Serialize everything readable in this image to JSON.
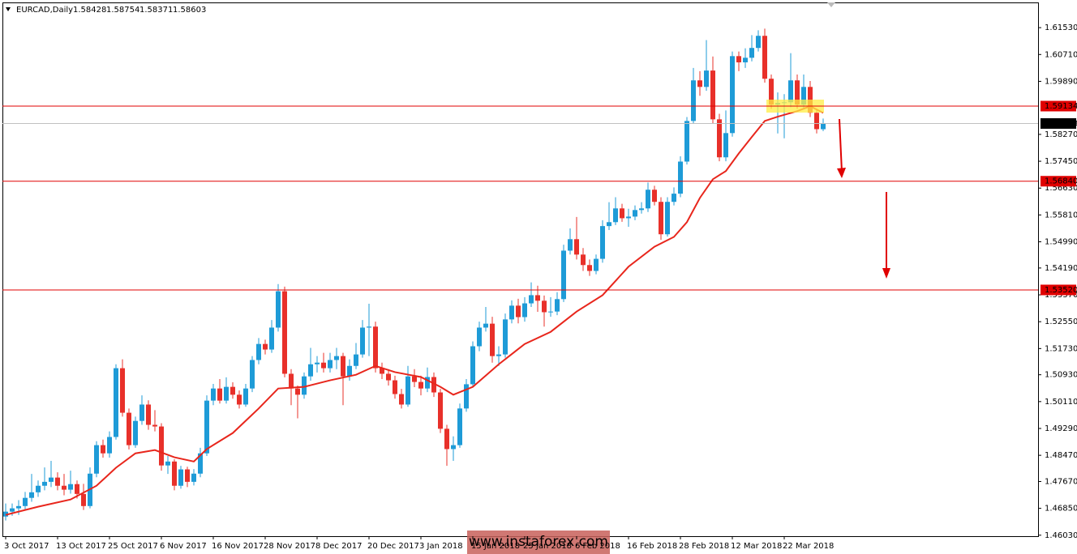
{
  "chart_data": {
    "type": "candlestick",
    "title": "EURCAD,Daily",
    "up_color": "#1e9bd7",
    "down_color": "#e8302a",
    "ylim": [
      1.46,
      1.623
    ],
    "yticks": [
      {
        "value": 1.6153,
        "label": "1.61530"
      },
      {
        "value": 1.6071,
        "label": "1.60710"
      },
      {
        "value": 1.5989,
        "label": "1.59890"
      },
      {
        "value": 1.5827,
        "label": "1.58270"
      },
      {
        "value": 1.5745,
        "label": "1.57450"
      },
      {
        "value": 1.5663,
        "label": "1.56630"
      },
      {
        "value": 1.5581,
        "label": "1.55810"
      },
      {
        "value": 1.5499,
        "label": "1.54990"
      },
      {
        "value": 1.5419,
        "label": "1.54190"
      },
      {
        "value": 1.5337,
        "label": "1.53370"
      },
      {
        "value": 1.5255,
        "label": "1.52550"
      },
      {
        "value": 1.5173,
        "label": "1.51730"
      },
      {
        "value": 1.5093,
        "label": "1.50930"
      },
      {
        "value": 1.5011,
        "label": "1.50110"
      },
      {
        "value": 1.4929,
        "label": "1.49290"
      },
      {
        "value": 1.4847,
        "label": "1.48470"
      },
      {
        "value": 1.4767,
        "label": "1.47670"
      },
      {
        "value": 1.4685,
        "label": "1.46850"
      },
      {
        "value": 1.4603,
        "label": "1.46030"
      }
    ],
    "xticks": [
      {
        "value": 0,
        "label": "3 Oct 2017"
      },
      {
        "value": 8,
        "label": "13 Oct 2017"
      },
      {
        "value": 16,
        "label": "25 Oct 2017"
      },
      {
        "value": 24,
        "label": "6 Nov 2017"
      },
      {
        "value": 32,
        "label": "16 Nov 2017"
      },
      {
        "value": 40,
        "label": "28 Nov 2017"
      },
      {
        "value": 48,
        "label": "8 Dec 2017"
      },
      {
        "value": 56,
        "label": "20 Dec 2017"
      },
      {
        "value": 64,
        "label": "3 Jan 2018"
      },
      {
        "value": 72,
        "label": "15 Jan 2018"
      },
      {
        "value": 80,
        "label": "25 Jan 2018"
      },
      {
        "value": 88,
        "label": "6 Feb 2018"
      },
      {
        "value": 96,
        "label": "16 Feb 2018"
      },
      {
        "value": 104,
        "label": "28 Feb 2018"
      },
      {
        "value": 112,
        "label": "12 Mar 2018"
      },
      {
        "value": 120,
        "label": "22 Mar 2018"
      }
    ],
    "levels": [
      {
        "value": 1.59134,
        "label": "1.59134",
        "color": "#e00000"
      },
      {
        "value": 1.5684,
        "label": "1.56840",
        "color": "#e00000"
      },
      {
        "value": 1.5352,
        "label": "1.53520",
        "color": "#e00000"
      }
    ],
    "ma": {
      "color": "#e8261c",
      "x": [
        0,
        5,
        10,
        14,
        17,
        20,
        23,
        26,
        29,
        31,
        35,
        39,
        42,
        46,
        50,
        54,
        57,
        60,
        64,
        67,
        69,
        72,
        76,
        80,
        84,
        88,
        92,
        96,
        100,
        103,
        105,
        107,
        109,
        111,
        113,
        115,
        117,
        119,
        122,
        124,
        126
      ],
      "values": [
        1.4665,
        1.469,
        1.4712,
        1.4754,
        1.4809,
        1.4853,
        1.4863,
        1.4841,
        1.4828,
        1.4866,
        1.4915,
        1.499,
        1.5051,
        1.5056,
        1.5076,
        1.5093,
        1.512,
        1.5101,
        1.5086,
        1.5056,
        1.5032,
        1.5056,
        1.5125,
        1.5187,
        1.5224,
        1.5286,
        1.5336,
        1.5423,
        1.5484,
        1.5514,
        1.5559,
        1.5633,
        1.569,
        1.5715,
        1.5769,
        1.5819,
        1.5868,
        1.5881,
        1.5898,
        1.5913,
        1.5893
      ]
    },
    "watermark": "www.instaforex.com",
    "candles": [
      [
        1.466,
        1.47,
        1.4648,
        1.4675
      ],
      [
        1.4675,
        1.47,
        1.4662,
        1.4685
      ],
      [
        1.4685,
        1.471,
        1.4665,
        1.4692
      ],
      [
        1.4692,
        1.4735,
        1.468,
        1.4717
      ],
      [
        1.4717,
        1.479,
        1.4705,
        1.4734
      ],
      [
        1.4734,
        1.477,
        1.472,
        1.4754
      ],
      [
        1.4754,
        1.481,
        1.474,
        1.4766
      ],
      [
        1.4766,
        1.483,
        1.475,
        1.4779
      ],
      [
        1.4779,
        1.4795,
        1.474,
        1.4754
      ],
      [
        1.4754,
        1.479,
        1.4725,
        1.4742
      ],
      [
        1.4742,
        1.48,
        1.473,
        1.4759
      ],
      [
        1.4759,
        1.477,
        1.4715,
        1.4729
      ],
      [
        1.4729,
        1.476,
        1.468,
        1.4692
      ],
      [
        1.4692,
        1.481,
        1.4685,
        1.4791
      ],
      [
        1.4791,
        1.489,
        1.478,
        1.4878
      ],
      [
        1.4878,
        1.4895,
        1.484,
        1.4853
      ],
      [
        1.4853,
        1.492,
        1.484,
        1.4903
      ],
      [
        1.4903,
        1.5125,
        1.4895,
        1.5113
      ],
      [
        1.5113,
        1.514,
        1.4965,
        1.4977
      ],
      [
        1.4977,
        1.499,
        1.4865,
        1.4878
      ],
      [
        1.4878,
        1.4965,
        1.487,
        1.4952
      ],
      [
        1.4952,
        1.503,
        1.494,
        1.5002
      ],
      [
        1.5002,
        1.5015,
        1.4925,
        1.494
      ],
      [
        1.494,
        1.4985,
        1.492,
        1.4935
      ],
      [
        1.4935,
        1.4945,
        1.48,
        1.4816
      ],
      [
        1.4816,
        1.4845,
        1.479,
        1.4828
      ],
      [
        1.4828,
        1.4835,
        1.474,
        1.4754
      ],
      [
        1.4754,
        1.4815,
        1.4745,
        1.4804
      ],
      [
        1.4804,
        1.4812,
        1.475,
        1.4766
      ],
      [
        1.4766,
        1.4805,
        1.4755,
        1.4791
      ],
      [
        1.4791,
        1.487,
        1.478,
        1.4853
      ],
      [
        1.4853,
        1.503,
        1.4845,
        1.5014
      ],
      [
        1.5014,
        1.5065,
        1.5,
        1.5051
      ],
      [
        1.5051,
        1.508,
        1.5005,
        1.5014
      ],
      [
        1.5014,
        1.5085,
        1.5005,
        1.5056
      ],
      [
        1.5056,
        1.507,
        1.502,
        1.5032
      ],
      [
        1.5032,
        1.5045,
        1.499,
        1.5002
      ],
      [
        1.5002,
        1.5065,
        1.4995,
        1.5051
      ],
      [
        1.5051,
        1.515,
        1.504,
        1.5138
      ],
      [
        1.5138,
        1.5205,
        1.5125,
        1.5187
      ],
      [
        1.5187,
        1.52,
        1.5155,
        1.517
      ],
      [
        1.517,
        1.526,
        1.516,
        1.5237
      ],
      [
        1.5237,
        1.537,
        1.5225,
        1.5348
      ],
      [
        1.5348,
        1.5362,
        1.5085,
        1.5096
      ],
      [
        1.5096,
        1.511,
        1.5,
        1.5051
      ],
      [
        1.5051,
        1.506,
        1.496,
        1.5032
      ],
      [
        1.5032,
        1.51,
        1.502,
        1.5088
      ],
      [
        1.5088,
        1.5175,
        1.5075,
        1.5125
      ],
      [
        1.5125,
        1.515,
        1.51,
        1.513
      ],
      [
        1.513,
        1.516,
        1.51,
        1.5113
      ],
      [
        1.5113,
        1.516,
        1.51,
        1.5138
      ],
      [
        1.5138,
        1.5175,
        1.511,
        1.515
      ],
      [
        1.515,
        1.516,
        1.5,
        1.5088
      ],
      [
        1.5088,
        1.514,
        1.5075,
        1.512
      ],
      [
        1.512,
        1.519,
        1.511,
        1.5155
      ],
      [
        1.5155,
        1.526,
        1.5145,
        1.5237
      ],
      [
        1.5237,
        1.531,
        1.515,
        1.524
      ],
      [
        1.524,
        1.5255,
        1.51,
        1.5113
      ],
      [
        1.5113,
        1.513,
        1.508,
        1.5096
      ],
      [
        1.5096,
        1.511,
        1.506,
        1.5076
      ],
      [
        1.5076,
        1.509,
        1.502,
        1.5034
      ],
      [
        1.5034,
        1.505,
        1.499,
        1.5002
      ],
      [
        1.5002,
        1.512,
        1.4995,
        1.5088
      ],
      [
        1.5088,
        1.511,
        1.5055,
        1.5071
      ],
      [
        1.5071,
        1.509,
        1.503,
        1.5051
      ],
      [
        1.5051,
        1.5115,
        1.504,
        1.5086
      ],
      [
        1.5086,
        1.51,
        1.5025,
        1.5039
      ],
      [
        1.5039,
        1.505,
        1.4915,
        1.4928
      ],
      [
        1.4928,
        1.494,
        1.4815,
        1.4866
      ],
      [
        1.4866,
        1.4905,
        1.483,
        1.4878
      ],
      [
        1.4878,
        1.5005,
        1.487,
        1.499
      ],
      [
        1.499,
        1.508,
        1.498,
        1.5064
      ],
      [
        1.5064,
        1.5195,
        1.5055,
        1.518
      ],
      [
        1.518,
        1.5255,
        1.5165,
        1.5237
      ],
      [
        1.5237,
        1.53,
        1.5225,
        1.5249
      ],
      [
        1.5249,
        1.527,
        1.513,
        1.515
      ],
      [
        1.515,
        1.518,
        1.512,
        1.5155
      ],
      [
        1.5155,
        1.528,
        1.5145,
        1.5262
      ],
      [
        1.5262,
        1.532,
        1.525,
        1.5304
      ],
      [
        1.5304,
        1.5325,
        1.525,
        1.5269
      ],
      [
        1.5269,
        1.533,
        1.5255,
        1.5311
      ],
      [
        1.5311,
        1.5375,
        1.53,
        1.5336
      ],
      [
        1.5336,
        1.5365,
        1.5285,
        1.5319
      ],
      [
        1.5319,
        1.5335,
        1.524,
        1.5284
      ],
      [
        1.5284,
        1.533,
        1.527,
        1.5286
      ],
      [
        1.5286,
        1.5345,
        1.5275,
        1.5324
      ],
      [
        1.5324,
        1.549,
        1.5315,
        1.5472
      ],
      [
        1.5472,
        1.554,
        1.546,
        1.5507
      ],
      [
        1.5507,
        1.5575,
        1.5445,
        1.546
      ],
      [
        1.546,
        1.548,
        1.541,
        1.5428
      ],
      [
        1.5428,
        1.5445,
        1.5395,
        1.541
      ],
      [
        1.541,
        1.546,
        1.54,
        1.5447
      ],
      [
        1.5447,
        1.5565,
        1.5435,
        1.5547
      ],
      [
        1.5547,
        1.562,
        1.5535,
        1.5559
      ],
      [
        1.5559,
        1.5635,
        1.555,
        1.5601
      ],
      [
        1.5601,
        1.5615,
        1.556,
        1.5571
      ],
      [
        1.5571,
        1.56,
        1.5545,
        1.5576
      ],
      [
        1.5576,
        1.561,
        1.5565,
        1.5596
      ],
      [
        1.5596,
        1.562,
        1.5585,
        1.5601
      ],
      [
        1.5601,
        1.568,
        1.559,
        1.5658
      ],
      [
        1.5658,
        1.567,
        1.561,
        1.5621
      ],
      [
        1.5621,
        1.5635,
        1.5505,
        1.5522
      ],
      [
        1.5522,
        1.5635,
        1.5515,
        1.5621
      ],
      [
        1.5621,
        1.5665,
        1.561,
        1.5646
      ],
      [
        1.5646,
        1.576,
        1.5635,
        1.5744
      ],
      [
        1.5744,
        1.588,
        1.5735,
        1.5868
      ],
      [
        1.5868,
        1.603,
        1.586,
        1.5992
      ],
      [
        1.5992,
        1.602,
        1.5945,
        1.5972
      ],
      [
        1.5972,
        1.6115,
        1.596,
        1.6022
      ],
      [
        1.6022,
        1.6065,
        1.586,
        1.5873
      ],
      [
        1.5873,
        1.589,
        1.5745,
        1.5757
      ],
      [
        1.5757,
        1.59,
        1.5745,
        1.5831
      ],
      [
        1.5831,
        1.608,
        1.582,
        1.6066
      ],
      [
        1.6066,
        1.608,
        1.602,
        1.6047
      ],
      [
        1.6047,
        1.609,
        1.603,
        1.6061
      ],
      [
        1.6061,
        1.613,
        1.605,
        1.6091
      ],
      [
        1.6091,
        1.6145,
        1.608,
        1.6128
      ],
      [
        1.6128,
        1.615,
        1.5985,
        1.5997
      ],
      [
        1.5997,
        1.601,
        1.5905,
        1.5918
      ],
      [
        1.5918,
        1.5955,
        1.583,
        1.5923
      ],
      [
        1.5923,
        1.595,
        1.5815,
        1.5925
      ],
      [
        1.5925,
        1.6075,
        1.591,
        1.5992
      ],
      [
        1.5992,
        1.601,
        1.5905,
        1.5918
      ],
      [
        1.5918,
        1.601,
        1.5905,
        1.5972
      ],
      [
        1.5972,
        1.599,
        1.588,
        1.5893
      ],
      [
        1.5893,
        1.5905,
        1.583,
        1.5843
      ],
      [
        1.58428,
        1.58754,
        1.58371,
        1.58603
      ]
    ]
  }
}
